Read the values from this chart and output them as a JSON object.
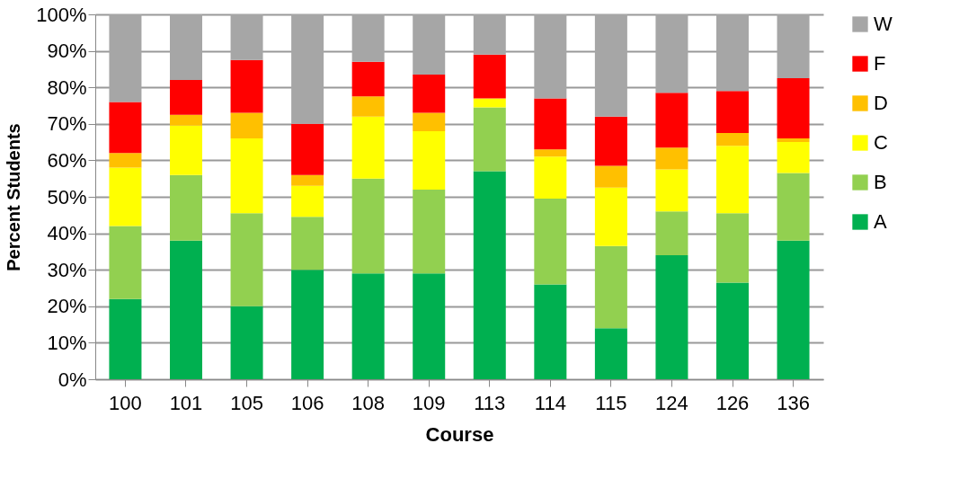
{
  "chart_data": {
    "type": "bar",
    "stacked": true,
    "xlabel": "Course",
    "ylabel": "Percent Students",
    "categories": [
      "100",
      "101",
      "105",
      "106",
      "108",
      "109",
      "113",
      "114",
      "115",
      "124",
      "126",
      "136"
    ],
    "series": [
      {
        "name": "A",
        "color": "#00b050",
        "values": [
          22,
          38,
          20,
          30,
          29,
          29,
          57,
          26,
          14,
          34,
          26.5,
          38
        ]
      },
      {
        "name": "B",
        "color": "#92d050",
        "values": [
          20,
          18,
          25.5,
          14.5,
          26,
          23,
          17.5,
          23.5,
          22.5,
          12,
          19,
          18.5
        ]
      },
      {
        "name": "C",
        "color": "#ffff00",
        "values": [
          16,
          13.5,
          20.5,
          8.5,
          17,
          16,
          2.5,
          11.5,
          16,
          11.5,
          18.5,
          8.5
        ]
      },
      {
        "name": "D",
        "color": "#ffc000",
        "values": [
          4,
          3,
          7,
          3,
          5.5,
          5,
          0,
          2,
          6,
          6,
          3.5,
          1
        ]
      },
      {
        "name": "F",
        "color": "#ff0000",
        "values": [
          14,
          9.5,
          14.5,
          14,
          9.5,
          10.5,
          12,
          14,
          13.5,
          15,
          11.5,
          16.5
        ]
      },
      {
        "name": "W",
        "color": "#a6a6a6",
        "values": [
          24,
          18,
          12.5,
          30,
          13,
          16.5,
          11,
          23,
          28,
          21.5,
          21,
          17.5
        ]
      }
    ],
    "ylim": [
      0,
      100
    ],
    "yticks": [
      {
        "value": 0,
        "label": "0%"
      },
      {
        "value": 10,
        "label": "10%"
      },
      {
        "value": 20,
        "label": "20%"
      },
      {
        "value": 30,
        "label": "30%"
      },
      {
        "value": 40,
        "label": "40%"
      },
      {
        "value": 50,
        "label": "50%"
      },
      {
        "value": 60,
        "label": "60%"
      },
      {
        "value": 70,
        "label": "70%"
      },
      {
        "value": 80,
        "label": "80%"
      },
      {
        "value": 90,
        "label": "90%"
      },
      {
        "value": 100,
        "label": "100%"
      }
    ],
    "grid": "y",
    "legend": "right"
  }
}
